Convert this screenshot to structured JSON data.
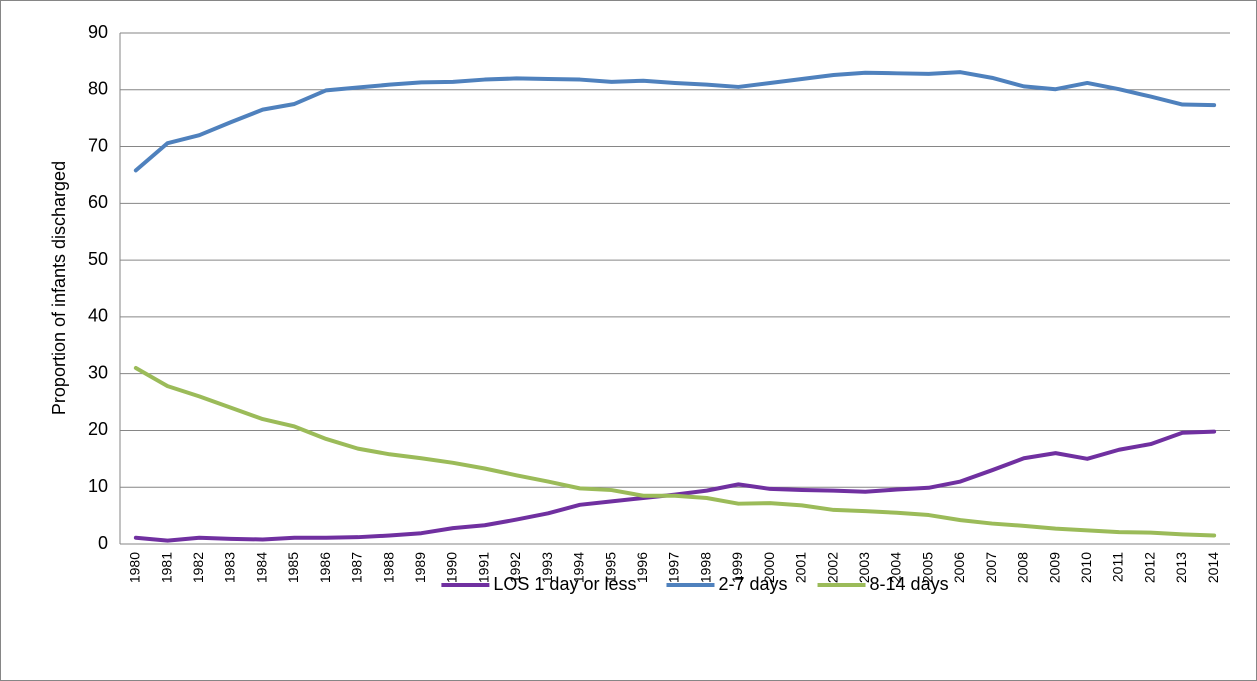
{
  "chart_data": {
    "type": "line",
    "y_label": "Proportion of infants discharged",
    "categories": [
      "1980",
      "1981",
      "1982",
      "1983",
      "1984",
      "1985",
      "1986",
      "1987",
      "1988",
      "1989",
      "1990",
      "1991",
      "1992",
      "1993",
      "1994",
      "1995",
      "1996",
      "1997",
      "1998",
      "1999",
      "2000",
      "2001",
      "2002",
      "2003",
      "2004",
      "2005",
      "2006",
      "2007",
      "2008",
      "2009",
      "2010",
      "2011",
      "2012",
      "2013",
      "2014"
    ],
    "series": [
      {
        "name": "LOS 1 day or less",
        "color": "#7030a0",
        "values": [
          1.1,
          0.6,
          1.1,
          0.9,
          0.8,
          1.1,
          1.1,
          1.2,
          1.5,
          1.9,
          2.8,
          3.3,
          4.3,
          5.4,
          6.9,
          7.5,
          8.1,
          8.7,
          9.4,
          10.5,
          9.7,
          9.5,
          9.4,
          9.2,
          9.6,
          9.9,
          11.0,
          13.0,
          15.1,
          16.0,
          15.0,
          16.6,
          17.6,
          19.6,
          19.8
        ]
      },
      {
        "name": "2-7 days",
        "color": "#4f81bd",
        "values": [
          65.8,
          70.6,
          72.0,
          74.3,
          76.5,
          77.5,
          79.9,
          80.4,
          80.9,
          81.3,
          81.4,
          81.8,
          82.0,
          81.9,
          81.8,
          81.4,
          81.6,
          81.2,
          80.9,
          80.5,
          81.2,
          81.9,
          82.6,
          83.0,
          82.9,
          82.8,
          83.1,
          82.1,
          80.6,
          80.1,
          81.2,
          80.1,
          78.8,
          77.4,
          77.3
        ]
      },
      {
        "name": "8-14 days",
        "color": "#9bbb59",
        "values": [
          31.0,
          27.8,
          26.0,
          24.0,
          22.0,
          20.7,
          18.5,
          16.8,
          15.8,
          15.1,
          14.3,
          13.3,
          12.1,
          11.0,
          9.8,
          9.5,
          8.5,
          8.5,
          8.1,
          7.1,
          7.2,
          6.8,
          6.0,
          5.8,
          5.5,
          5.1,
          4.2,
          3.6,
          3.2,
          2.7,
          2.4,
          2.1,
          2.0,
          1.7,
          1.5
        ]
      }
    ],
    "ylim": [
      0,
      90
    ],
    "yticks": [
      0,
      10,
      20,
      30,
      40,
      50,
      60,
      70,
      80,
      90
    ],
    "grid": true,
    "legend": "bottom"
  }
}
